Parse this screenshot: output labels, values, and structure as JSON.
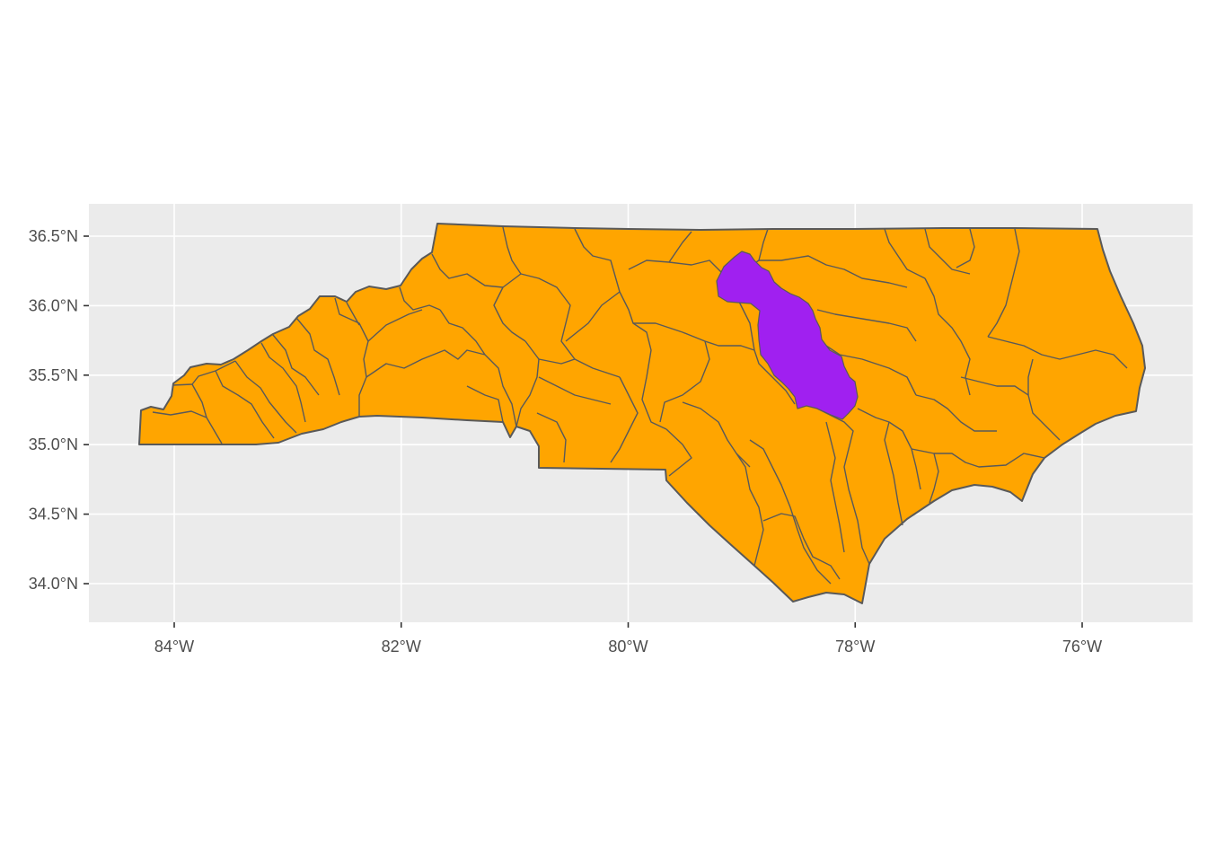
{
  "map": {
    "projection": "longitude-latitude",
    "region": "North Carolina counties",
    "background_color": "#ebebeb",
    "grid_color": "#ffffff",
    "fill_default": "#ffa500",
    "fill_highlight": "#a020f0",
    "border_color": "#595959",
    "x_ticks": [
      {
        "value": -84,
        "label": "84°W"
      },
      {
        "value": -82,
        "label": "82°W"
      },
      {
        "value": -80,
        "label": "80°W"
      },
      {
        "value": -78,
        "label": "78°W"
      },
      {
        "value": -76,
        "label": "76°W"
      }
    ],
    "y_ticks": [
      {
        "value": 36.5,
        "label": "36.5°N"
      },
      {
        "value": 36.0,
        "label": "36.0°N"
      },
      {
        "value": 35.5,
        "label": "35.5°N"
      },
      {
        "value": 35.0,
        "label": "35.0°N"
      },
      {
        "value": 34.5,
        "label": "34.5°N"
      },
      {
        "value": 34.0,
        "label": "34.0°N"
      }
    ]
  }
}
